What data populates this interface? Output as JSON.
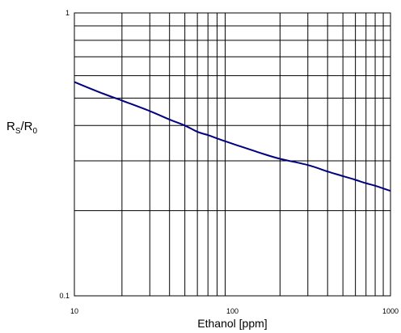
{
  "chart_data": {
    "type": "line",
    "title": "",
    "xlabel": "Ethanol [ppm]",
    "ylabel": {
      "text_main": "R",
      "sub_1": "S",
      "separator": "/R",
      "sub_2": "0"
    },
    "x_scale": "log",
    "y_scale": "log",
    "xlim": [
      10,
      1000
    ],
    "ylim": [
      0.1,
      1
    ],
    "x_tick_labels": [
      "10",
      "100",
      "1000"
    ],
    "x_tick_values": [
      10,
      100,
      1000
    ],
    "y_tick_labels": [
      "0.1",
      "1"
    ],
    "y_tick_values": [
      0.1,
      1
    ],
    "grid": true,
    "legend": "none",
    "series": [
      {
        "color": "#000080",
        "x": [
          10,
          15,
          20,
          30,
          40,
          50,
          60,
          70,
          80,
          100,
          150,
          200,
          300,
          400,
          500,
          600,
          700,
          800,
          1000
        ],
        "y": [
          0.57,
          0.52,
          0.49,
          0.45,
          0.42,
          0.4,
          0.38,
          0.37,
          0.36,
          0.345,
          0.32,
          0.305,
          0.29,
          0.275,
          0.265,
          0.257,
          0.25,
          0.245,
          0.235
        ]
      }
    ]
  }
}
